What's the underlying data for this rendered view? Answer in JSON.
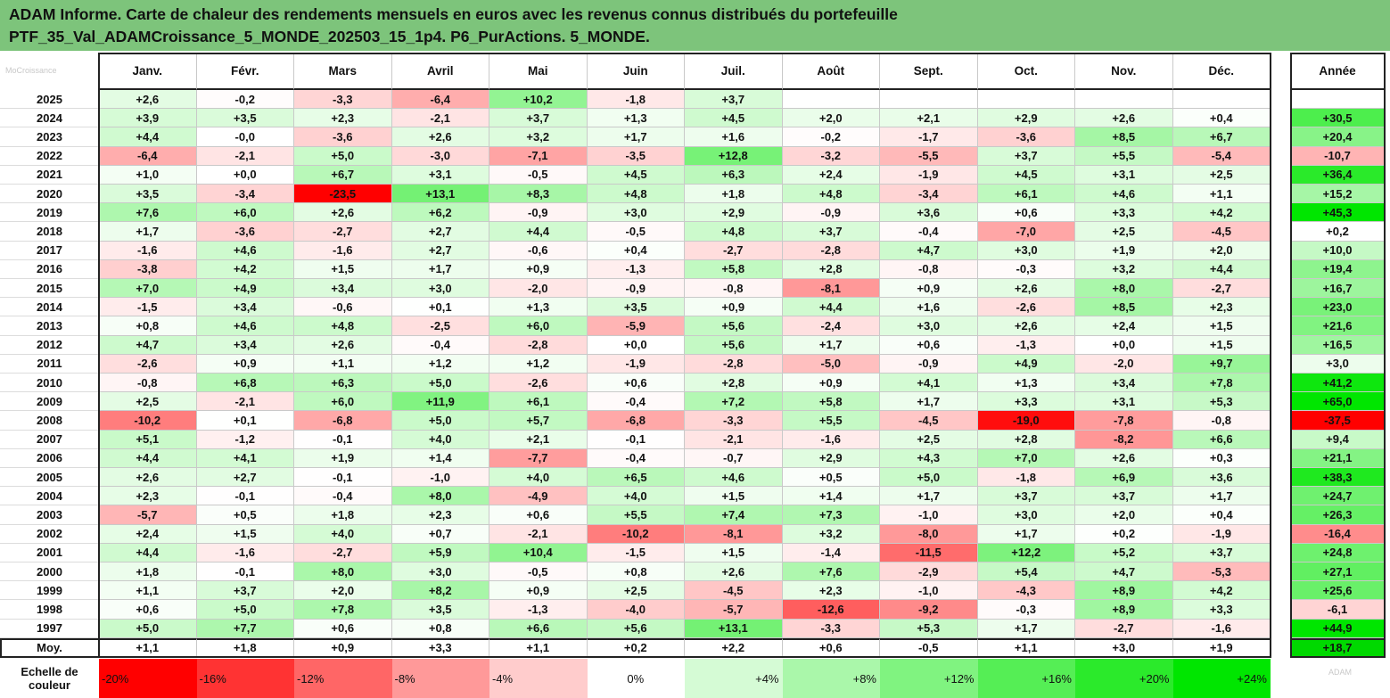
{
  "title": {
    "line1": "ADAM Informe. Carte de chaleur des rendements mensuels en euros avec les revenus connus distribués du portefeuille",
    "line2": "PTF_35_Val_ADAMCroissance_5_MONDE_202503_15_1p4. P6_PurActions. 5_MONDE."
  },
  "corner_watermark": "MoCroissance",
  "scale_watermark": "ADAM",
  "chart_data": {
    "type": "heatmap",
    "title": "ADAM Informe. Carte de chaleur des rendements mensuels en euros avec les revenus connus distribués du portefeuille PTF_35_Val_ADAMCroissance_5_MONDE_202503_15_1p4. P6_PurActions. 5_MONDE.",
    "months": [
      "Janv.",
      "Févr.",
      "Mars",
      "Avril",
      "Mai",
      "Juin",
      "Juil.",
      "Août",
      "Sept.",
      "Oct.",
      "Nov.",
      "Déc."
    ],
    "year_header": "Année",
    "rows": [
      {
        "label": "2025",
        "months": [
          "+2,6",
          "-0,2",
          "-3,3",
          "-6,4",
          "+10,2",
          "-1,8",
          "+3,7",
          "",
          "",
          "",
          "",
          ""
        ],
        "year": ""
      },
      {
        "label": "2024",
        "months": [
          "+3,9",
          "+3,5",
          "+2,3",
          "-2,1",
          "+3,7",
          "+1,3",
          "+4,5",
          "+2,0",
          "+2,1",
          "+2,9",
          "+2,6",
          "+0,4"
        ],
        "year": "+30,5"
      },
      {
        "label": "2023",
        "months": [
          "+4,4",
          "-0,0",
          "-3,6",
          "+2,6",
          "+3,2",
          "+1,7",
          "+1,6",
          "-0,2",
          "-1,7",
          "-3,6",
          "+8,5",
          "+6,7"
        ],
        "year": "+20,4"
      },
      {
        "label": "2022",
        "months": [
          "-6,4",
          "-2,1",
          "+5,0",
          "-3,0",
          "-7,1",
          "-3,5",
          "+12,8",
          "-3,2",
          "-5,5",
          "+3,7",
          "+5,5",
          "-5,4"
        ],
        "year": "-10,7"
      },
      {
        "label": "2021",
        "months": [
          "+1,0",
          "+0,0",
          "+6,7",
          "+3,1",
          "-0,5",
          "+4,5",
          "+6,3",
          "+2,4",
          "-1,9",
          "+4,5",
          "+3,1",
          "+2,5"
        ],
        "year": "+36,4"
      },
      {
        "label": "2020",
        "months": [
          "+3,5",
          "-3,4",
          "-23,5",
          "+13,1",
          "+8,3",
          "+4,8",
          "+1,8",
          "+4,8",
          "-3,4",
          "+6,1",
          "+4,6",
          "+1,1"
        ],
        "year": "+15,2"
      },
      {
        "label": "2019",
        "months": [
          "+7,6",
          "+6,0",
          "+2,6",
          "+6,2",
          "-0,9",
          "+3,0",
          "+2,9",
          "-0,9",
          "+3,6",
          "+0,6",
          "+3,3",
          "+4,2"
        ],
        "year": "+45,3"
      },
      {
        "label": "2018",
        "months": [
          "+1,7",
          "-3,6",
          "-2,7",
          "+2,7",
          "+4,4",
          "-0,5",
          "+4,8",
          "+3,7",
          "-0,4",
          "-7,0",
          "+2,5",
          "-4,5"
        ],
        "year": "+0,2"
      },
      {
        "label": "2017",
        "months": [
          "-1,6",
          "+4,6",
          "-1,6",
          "+2,7",
          "-0,6",
          "+0,4",
          "-2,7",
          "-2,8",
          "+4,7",
          "+3,0",
          "+1,9",
          "+2,0"
        ],
        "year": "+10,0"
      },
      {
        "label": "2016",
        "months": [
          "-3,8",
          "+4,2",
          "+1,5",
          "+1,7",
          "+0,9",
          "-1,3",
          "+5,8",
          "+2,8",
          "-0,8",
          "-0,3",
          "+3,2",
          "+4,4"
        ],
        "year": "+19,4"
      },
      {
        "label": "2015",
        "months": [
          "+7,0",
          "+4,9",
          "+3,4",
          "+3,0",
          "-2,0",
          "-0,9",
          "-0,8",
          "-8,1",
          "+0,9",
          "+2,6",
          "+8,0",
          "-2,7"
        ],
        "year": "+16,7"
      },
      {
        "label": "2014",
        "months": [
          "-1,5",
          "+3,4",
          "-0,6",
          "+0,1",
          "+1,3",
          "+3,5",
          "+0,9",
          "+4,4",
          "+1,6",
          "-2,6",
          "+8,5",
          "+2,3"
        ],
        "year": "+23,0"
      },
      {
        "label": "2013",
        "months": [
          "+0,8",
          "+4,6",
          "+4,8",
          "-2,5",
          "+6,0",
          "-5,9",
          "+5,6",
          "-2,4",
          "+3,0",
          "+2,6",
          "+2,4",
          "+1,5"
        ],
        "year": "+21,6"
      },
      {
        "label": "2012",
        "months": [
          "+4,7",
          "+3,4",
          "+2,6",
          "-0,4",
          "-2,8",
          "+0,0",
          "+5,6",
          "+1,7",
          "+0,6",
          "-1,3",
          "+0,0",
          "+1,5"
        ],
        "year": "+16,5"
      },
      {
        "label": "2011",
        "months": [
          "-2,6",
          "+0,9",
          "+1,1",
          "+1,2",
          "+1,2",
          "-1,9",
          "-2,8",
          "-5,0",
          "-0,9",
          "+4,9",
          "-2,0",
          "+9,7"
        ],
        "year": "+3,0"
      },
      {
        "label": "2010",
        "months": [
          "-0,8",
          "+6,8",
          "+6,3",
          "+5,0",
          "-2,6",
          "+0,6",
          "+2,8",
          "+0,9",
          "+4,1",
          "+1,3",
          "+3,4",
          "+7,8"
        ],
        "year": "+41,2"
      },
      {
        "label": "2009",
        "months": [
          "+2,5",
          "-2,1",
          "+6,0",
          "+11,9",
          "+6,1",
          "-0,4",
          "+7,2",
          "+5,8",
          "+1,7",
          "+3,3",
          "+3,1",
          "+5,3"
        ],
        "year": "+65,0"
      },
      {
        "label": "2008",
        "months": [
          "-10,2",
          "+0,1",
          "-6,8",
          "+5,0",
          "+5,7",
          "-6,8",
          "-3,3",
          "+5,5",
          "-4,5",
          "-19,0",
          "-7,8",
          "-0,8"
        ],
        "year": "-37,5"
      },
      {
        "label": "2007",
        "months": [
          "+5,1",
          "-1,2",
          "-0,1",
          "+4,0",
          "+2,1",
          "-0,1",
          "-2,1",
          "-1,6",
          "+2,5",
          "+2,8",
          "-8,2",
          "+6,6"
        ],
        "year": "+9,4"
      },
      {
        "label": "2006",
        "months": [
          "+4,4",
          "+4,1",
          "+1,9",
          "+1,4",
          "-7,7",
          "-0,4",
          "-0,7",
          "+2,9",
          "+4,3",
          "+7,0",
          "+2,6",
          "+0,3"
        ],
        "year": "+21,1"
      },
      {
        "label": "2005",
        "months": [
          "+2,6",
          "+2,7",
          "-0,1",
          "-1,0",
          "+4,0",
          "+6,5",
          "+4,6",
          "+0,5",
          "+5,0",
          "-1,8",
          "+6,9",
          "+3,6"
        ],
        "year": "+38,3"
      },
      {
        "label": "2004",
        "months": [
          "+2,3",
          "-0,1",
          "-0,4",
          "+8,0",
          "-4,9",
          "+4,0",
          "+1,5",
          "+1,4",
          "+1,7",
          "+3,7",
          "+3,7",
          "+1,7"
        ],
        "year": "+24,7"
      },
      {
        "label": "2003",
        "months": [
          "-5,7",
          "+0,5",
          "+1,8",
          "+2,3",
          "+0,6",
          "+5,5",
          "+7,4",
          "+7,3",
          "-1,0",
          "+3,0",
          "+2,0",
          "+0,4"
        ],
        "year": "+26,3"
      },
      {
        "label": "2002",
        "months": [
          "+2,4",
          "+1,5",
          "+4,0",
          "+0,7",
          "-2,1",
          "-10,2",
          "-8,1",
          "+3,2",
          "-8,0",
          "+1,7",
          "+0,2",
          "-1,9"
        ],
        "year": "-16,4"
      },
      {
        "label": "2001",
        "months": [
          "+4,4",
          "-1,6",
          "-2,7",
          "+5,9",
          "+10,4",
          "-1,5",
          "+1,5",
          "-1,4",
          "-11,5",
          "+12,2",
          "+5,2",
          "+3,7"
        ],
        "year": "+24,8"
      },
      {
        "label": "2000",
        "months": [
          "+1,8",
          "-0,1",
          "+8,0",
          "+3,0",
          "-0,5",
          "+0,8",
          "+2,6",
          "+7,6",
          "-2,9",
          "+5,4",
          "+4,7",
          "-5,3"
        ],
        "year": "+27,1"
      },
      {
        "label": "1999",
        "months": [
          "+1,1",
          "+3,7",
          "+2,0",
          "+8,2",
          "+0,9",
          "+2,5",
          "-4,5",
          "+2,3",
          "-1,0",
          "-4,3",
          "+8,9",
          "+4,2"
        ],
        "year": "+25,6"
      },
      {
        "label": "1998",
        "months": [
          "+0,6",
          "+5,0",
          "+7,8",
          "+3,5",
          "-1,3",
          "-4,0",
          "-5,7",
          "-12,6",
          "-9,2",
          "-0,3",
          "+8,9",
          "+3,3"
        ],
        "year": "-6,1"
      },
      {
        "label": "1997",
        "months": [
          "+5,0",
          "+7,7",
          "+0,6",
          "+0,8",
          "+6,6",
          "+5,6",
          "+13,1",
          "-3,3",
          "+5,3",
          "+1,7",
          "-2,7",
          "-1,6"
        ],
        "year": "+44,9"
      },
      {
        "label": "Moy.",
        "months": [
          "+1,1",
          "+1,8",
          "+0,9",
          "+3,3",
          "+1,1",
          "+0,2",
          "+2,2",
          "+0,6",
          "-0,5",
          "+1,1",
          "+3,0",
          "+1,9"
        ],
        "year": "+18,7"
      }
    ],
    "scale_label": [
      "Echelle de",
      "couleur"
    ],
    "scale": [
      "-20%",
      "-16%",
      "-12%",
      "-8%",
      "-4%",
      "0%",
      "+4%",
      "+8%",
      "+12%",
      "+16%",
      "+20%",
      "+24%"
    ],
    "colors": {
      "negative_max": "#ff0000",
      "positive_max": "#00e600",
      "neutral": "#ffffff",
      "title_bg": "#7dc47b"
    }
  }
}
